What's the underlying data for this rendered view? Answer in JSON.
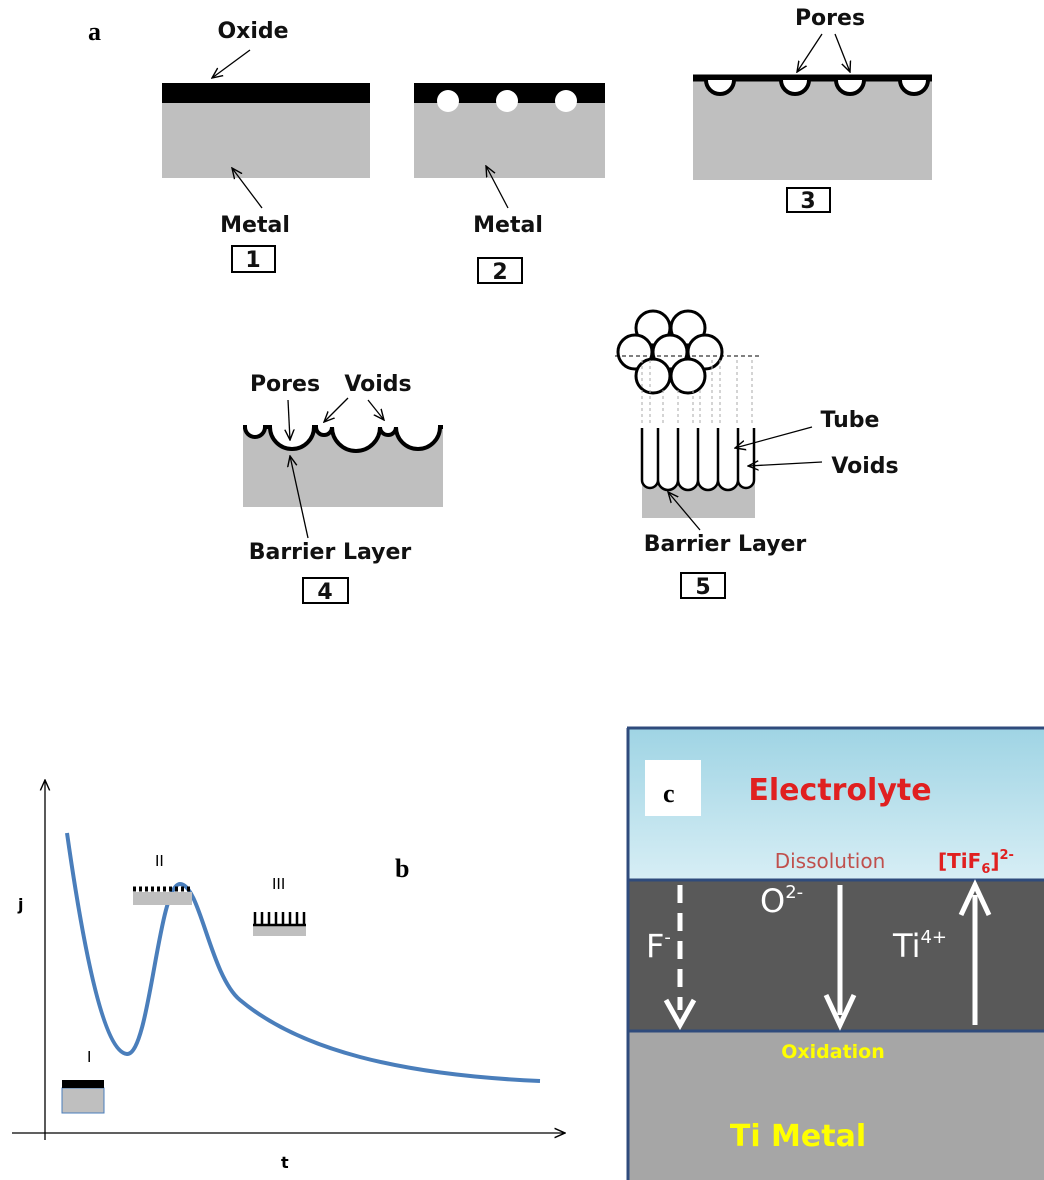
{
  "panel_a": {
    "label": "a",
    "step1": {
      "oxide": "Oxide",
      "metal": "Metal",
      "number": "1"
    },
    "step2": {
      "metal": "Metal",
      "number": "2"
    },
    "step3": {
      "pores": "Pores",
      "number": "3"
    },
    "step4": {
      "pores": "Pores",
      "voids": "Voids",
      "barrier": "Barrier Layer",
      "number": "4"
    },
    "step5": {
      "tube": "Tube",
      "voids": "Voids",
      "barrier": "Barrier Layer",
      "number": "5"
    }
  },
  "panel_b": {
    "label": "b",
    "y_axis": "j",
    "x_axis": "t",
    "stages": [
      "I",
      "II",
      "III"
    ]
  },
  "panel_c": {
    "label": "c",
    "electrolyte": "Electrolyte",
    "dissolution": "Dissolution",
    "complex": {
      "base": "[TiF",
      "sub": "6",
      "close": "]",
      "sup": "2-"
    },
    "fluoride": {
      "base": "F",
      "sup": "-"
    },
    "oxide_ion": {
      "base": "O",
      "sup": "2-"
    },
    "titanium_ion": {
      "base": "Ti",
      "sup": "4+"
    },
    "oxidation": "Oxidation",
    "metal": "Ti Metal"
  }
}
